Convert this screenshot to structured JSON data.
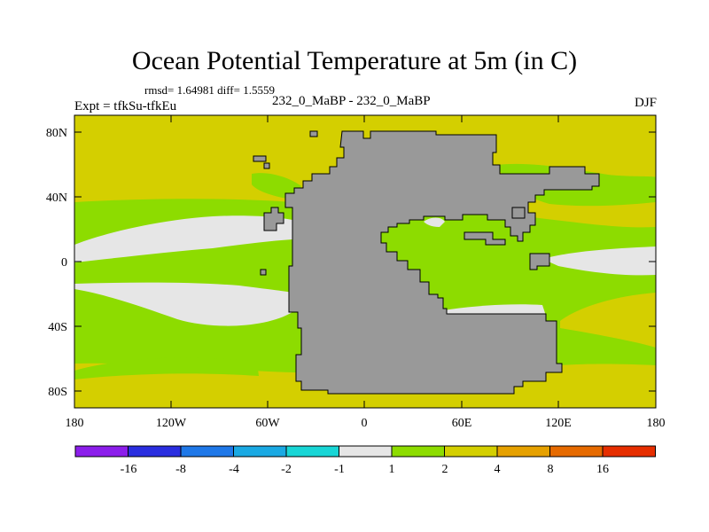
{
  "title": "Ocean Potential Temperature at 5m (in C)",
  "stats": "rmsd= 1.64981 diff= 1.5559",
  "experiment": "Expt = tfkSu-tfkEu",
  "runs": "232_0_MaBP - 232_0_MaBP",
  "season": "DJF",
  "map": {
    "lat_labels": [
      "80N",
      "40N",
      "0",
      "40S",
      "80S"
    ],
    "lon_labels": [
      "180",
      "120W",
      "60W",
      "0",
      "60E",
      "120E",
      "180"
    ],
    "land_color": "#999999"
  },
  "colorbar": {
    "colors": [
      "#8c1eeb",
      "#2a2ee0",
      "#1f78e8",
      "#1aa9e3",
      "#18d6d6",
      "#e6e6e6",
      "#8ddc00",
      "#d4cf00",
      "#e6a100",
      "#e66a00",
      "#e62e00"
    ],
    "labels": [
      "-16",
      "-8",
      "-4",
      "-2",
      "-1",
      "1",
      "2",
      "4",
      "8",
      "16"
    ]
  }
}
